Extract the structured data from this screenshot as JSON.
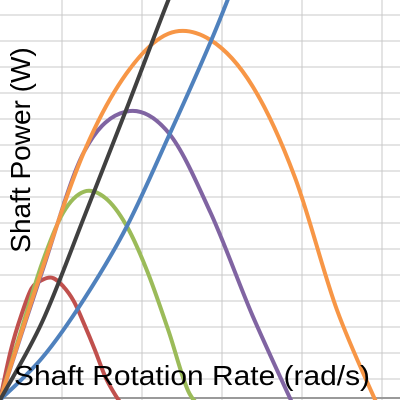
{
  "chart_data": {
    "type": "line",
    "title": "",
    "xlabel": "Shaft Rotation Rate (rad/s)",
    "ylabel": "Shaft Power (W)",
    "xlim": [
      0,
      19
    ],
    "ylim": [
      0,
      19
    ],
    "grid": true,
    "legend": "none",
    "series": [
      {
        "color": "#c0504d",
        "x": [
          0,
          0.5,
          1,
          1.5,
          2,
          2.5,
          3,
          3.5,
          4,
          4.5,
          5,
          5.5,
          6
        ],
        "y": [
          0,
          2.3,
          4.0,
          5.3,
          5.7,
          5.8,
          5.4,
          4.7,
          3.6,
          2.4,
          1.1,
          0.2,
          -0.5
        ]
      },
      {
        "color": "#9bbb59",
        "x": [
          0,
          1,
          2,
          3,
          4,
          5,
          6,
          7,
          8,
          9,
          10
        ],
        "y": [
          0,
          3.3,
          6.5,
          8.9,
          9.9,
          9.6,
          8.3,
          6.1,
          3.3,
          0.3,
          -0.5
        ]
      },
      {
        "color": "#8064a2",
        "x": [
          0,
          2,
          4,
          6,
          8,
          10,
          12,
          14
        ],
        "y": [
          0,
          6.1,
          11.8,
          13.7,
          12.7,
          8.9,
          4.0,
          -0.4
        ]
      },
      {
        "color": "#f79646",
        "x": [
          0,
          2,
          4,
          6,
          8,
          10,
          12,
          14,
          16,
          18
        ],
        "y": [
          0,
          6.2,
          11.8,
          15.5,
          17.4,
          17.1,
          14.9,
          10.6,
          4.3,
          -0.4
        ]
      },
      {
        "color": "#4f81bd",
        "x": [
          0,
          2,
          4,
          6,
          8,
          10,
          11.2
        ],
        "y": [
          0,
          2.0,
          4.8,
          8.2,
          12.5,
          17.0,
          20.0
        ]
      },
      {
        "color": "#404040",
        "x": [
          0,
          2,
          4,
          6,
          8,
          8.5
        ],
        "y": [
          0,
          3.7,
          8.7,
          13.8,
          19.0,
          20.0
        ]
      }
    ]
  }
}
